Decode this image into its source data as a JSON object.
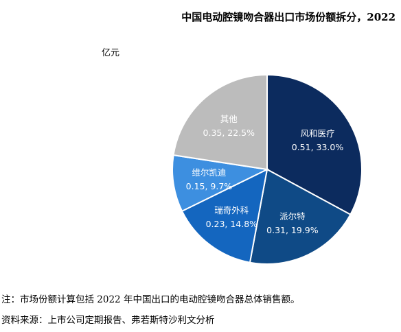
{
  "chart_data": {
    "type": "pie",
    "title": "中国电动腔镜吻合器出口市场份额拆分，2022",
    "unit": "亿元",
    "slices": [
      {
        "name": "风和医疗",
        "value": 0.51,
        "percent": "33.0%",
        "value_label": "0.51, 33.0%",
        "color": "#0c2b5e"
      },
      {
        "name": "派尔特",
        "value": 0.31,
        "percent": "19.9%",
        "value_label": "0.31, 19.9%",
        "color": "#0f4a86"
      },
      {
        "name": "瑞奇外科",
        "value": 0.23,
        "percent": "14.8%",
        "value_label": "0.23, 14.8%",
        "color": "#1466bf"
      },
      {
        "name": "维尔凯迪",
        "value": 0.15,
        "percent": "9.7%",
        "value_label": "0.15, 9.7%",
        "color": "#3d8fe0"
      },
      {
        "name": "其他",
        "value": 0.35,
        "percent": "22.5%",
        "value_label": "0.35, 22.5%",
        "color": "#bcbcbc"
      }
    ]
  },
  "footnotes": {
    "note": "注：市场份额计算包括 2022 年中国出口的电动腔镜吻合器总体销售额。",
    "source": "资料来源：上市公司定期报告、弗若斯特沙利文分析"
  }
}
